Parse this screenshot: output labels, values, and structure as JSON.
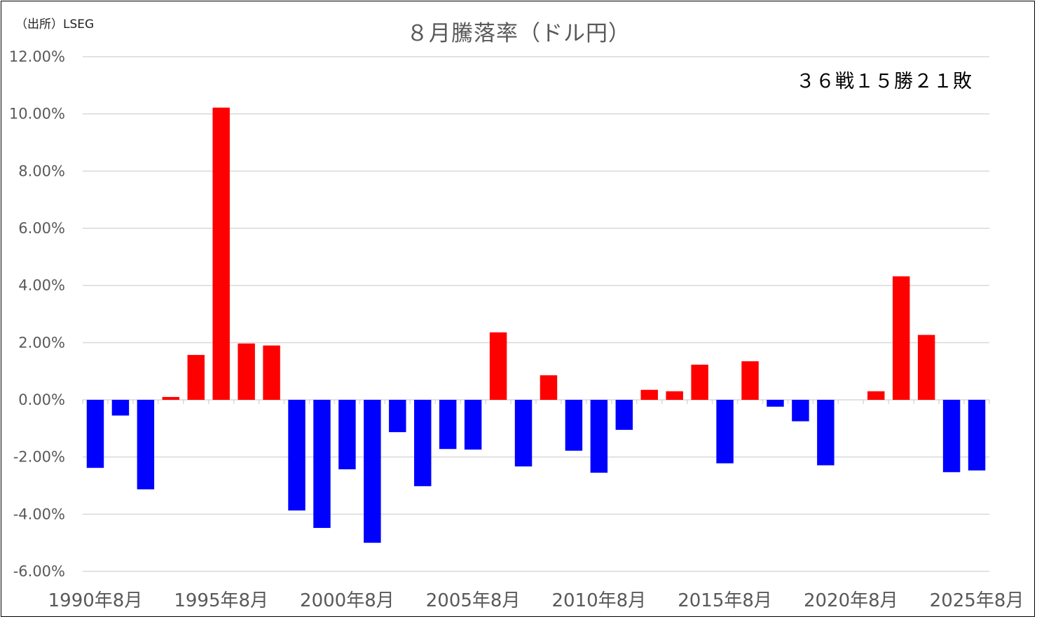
{
  "source": "（出所）LSEG",
  "record_text": "３６戦１５勝２１敗",
  "chart_data": {
    "type": "bar",
    "title": "８月騰落率（ドル円）",
    "xlabel": "",
    "ylabel": "",
    "ylim": [
      -6,
      12
    ],
    "yticks": [
      {
        "value": 12,
        "label": "12.00%"
      },
      {
        "value": 10,
        "label": "10.00%"
      },
      {
        "value": 8,
        "label": "8.00%"
      },
      {
        "value": 6,
        "label": "6.00%"
      },
      {
        "value": 4,
        "label": "4.00%"
      },
      {
        "value": 2,
        "label": "2.00%"
      },
      {
        "value": 0,
        "label": "0.00%"
      },
      {
        "value": -2,
        "label": "-2.00%"
      },
      {
        "value": -4,
        "label": "-4.00%"
      },
      {
        "value": -6,
        "label": "-6.00%"
      }
    ],
    "categories": [
      "1990年8月",
      "1991年8月",
      "1992年8月",
      "1993年8月",
      "1994年8月",
      "1995年8月",
      "1996年8月",
      "1997年8月",
      "1998年8月",
      "1999年8月",
      "2000年8月",
      "2001年8月",
      "2002年8月",
      "2003年8月",
      "2004年8月",
      "2005年8月",
      "2006年8月",
      "2007年8月",
      "2008年8月",
      "2009年8月",
      "2010年8月",
      "2011年8月",
      "2012年8月",
      "2013年8月",
      "2014年8月",
      "2015年8月",
      "2016年8月",
      "2017年8月",
      "2018年8月",
      "2019年8月",
      "2020年8月",
      "2021年8月",
      "2022年8月",
      "2023年8月",
      "2024年8月",
      "2025年8月"
    ],
    "x_tick_labels": [
      "1990年8月",
      "1995年8月",
      "2000年8月",
      "2005年8月",
      "2010年8月",
      "2015年8月",
      "2020年8月",
      "2025年8月"
    ],
    "values": [
      -2.38,
      -0.55,
      -3.13,
      0.1,
      1.57,
      10.22,
      1.97,
      1.9,
      -3.87,
      -4.48,
      -2.43,
      -5.0,
      -1.13,
      -3.02,
      -1.72,
      -1.74,
      2.36,
      -2.33,
      0.86,
      -1.78,
      -2.55,
      -1.05,
      0.35,
      0.3,
      1.23,
      -2.22,
      1.35,
      -0.24,
      -0.75,
      -2.29,
      0.0,
      0.3,
      4.32,
      2.27,
      -2.53,
      -2.47
    ],
    "colors": {
      "positive": "#ff0000",
      "negative": "#0000ff",
      "grid": "#d9d9d9",
      "tick_text": "#595959"
    },
    "grid": true,
    "legend": "none"
  }
}
